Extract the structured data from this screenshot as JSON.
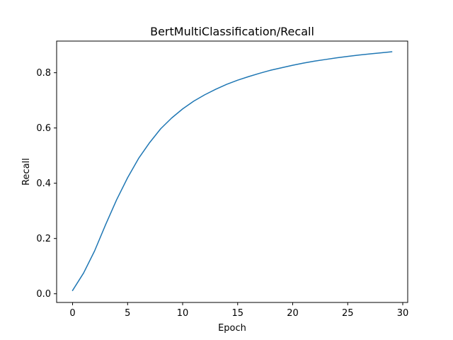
{
  "chart_data": {
    "type": "line",
    "title": "BertMultiClassification/Recall",
    "xlabel": "Epoch",
    "ylabel": "Recall",
    "xlim": [
      -1.45,
      30.45
    ],
    "ylim": [
      -0.0315,
      0.9145
    ],
    "xticks": [
      0,
      5,
      10,
      15,
      20,
      25,
      30
    ],
    "yticks": [
      0.0,
      0.2,
      0.4,
      0.6,
      0.8
    ],
    "xtick_labels": [
      "0",
      "5",
      "10",
      "15",
      "20",
      "25",
      "30"
    ],
    "ytick_labels": [
      "0.0",
      "0.2",
      "0.4",
      "0.6",
      "0.8"
    ],
    "grid": false,
    "legend": "none",
    "series": [
      {
        "color": "#1f77b4",
        "x": [
          0,
          1,
          2,
          3,
          4,
          5,
          6,
          7,
          8,
          9,
          10,
          11,
          12,
          13,
          14,
          15,
          16,
          17,
          18,
          19,
          20,
          21,
          22,
          23,
          24,
          25,
          26,
          27,
          28,
          29
        ],
        "y": [
          0.012,
          0.075,
          0.155,
          0.25,
          0.34,
          0.42,
          0.49,
          0.547,
          0.597,
          0.636,
          0.669,
          0.697,
          0.72,
          0.74,
          0.758,
          0.773,
          0.786,
          0.798,
          0.809,
          0.818,
          0.827,
          0.835,
          0.842,
          0.848,
          0.854,
          0.859,
          0.864,
          0.868,
          0.872,
          0.876
        ]
      }
    ]
  }
}
